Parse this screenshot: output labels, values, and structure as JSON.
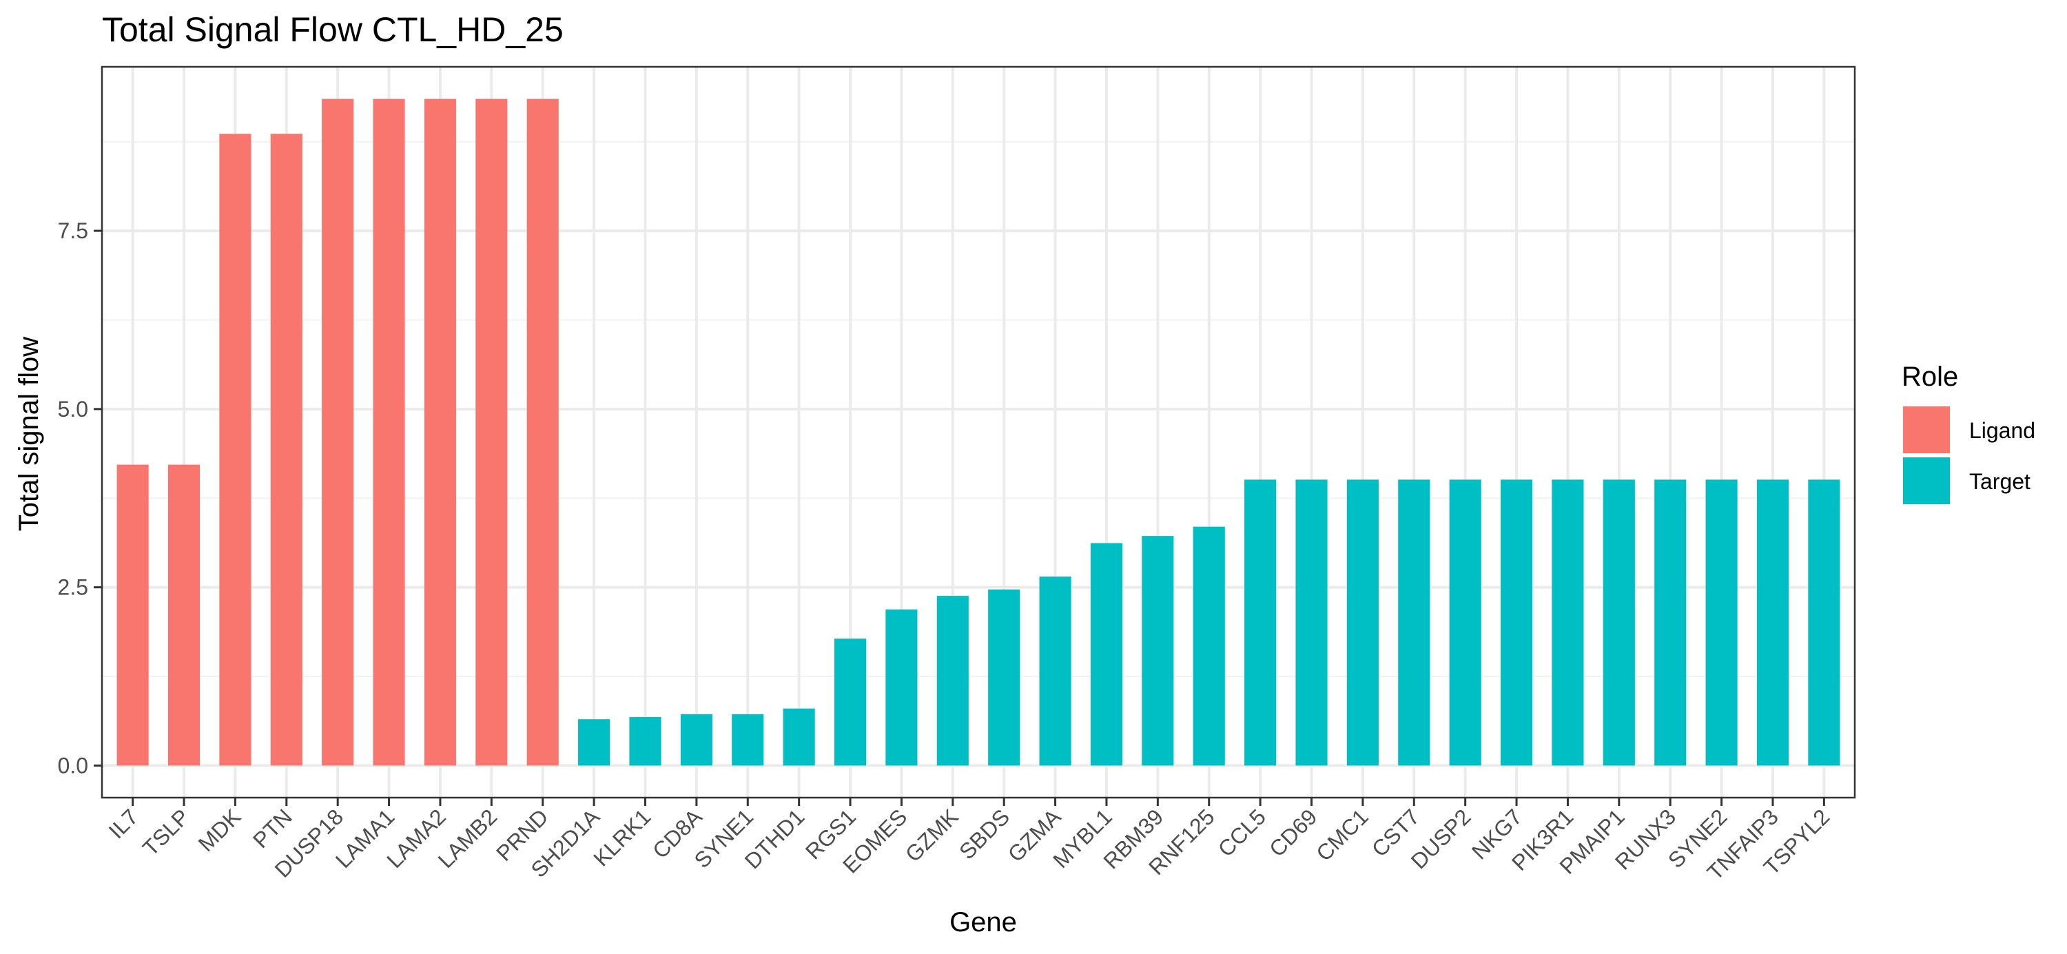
{
  "chart_data": {
    "type": "bar",
    "title": "Total Signal Flow CTL_HD_25",
    "xlabel": "Gene",
    "ylabel": "Total signal flow",
    "ylim": [
      -0.45,
      9.8
    ],
    "yticks": [
      0.0,
      2.5,
      5.0,
      7.5
    ],
    "ytick_labels": [
      "0.0",
      "2.5",
      "5.0",
      "7.5"
    ],
    "grid": true,
    "legend": {
      "title": "Role",
      "position": "right",
      "entries": [
        {
          "label": "Ligand",
          "color": "#F8766D"
        },
        {
          "label": "Target",
          "color": "#00BFC4"
        }
      ]
    },
    "colors": {
      "Ligand": "#F8766D",
      "Target": "#00BFC4"
    },
    "categories": [
      "IL7",
      "TSLP",
      "MDK",
      "PTN",
      "DUSP18",
      "LAMA1",
      "LAMA2",
      "LAMB2",
      "PRND",
      "SH2D1A",
      "KLRK1",
      "CD8A",
      "SYNE1",
      "DTHD1",
      "RGS1",
      "EOMES",
      "GZMK",
      "SBDS",
      "GZMA",
      "MYBL1",
      "RBM39",
      "RNF125",
      "CCL5",
      "CD69",
      "CMC1",
      "CST7",
      "DUSP2",
      "NKG7",
      "PIK3R1",
      "PMAIP1",
      "RUNX3",
      "SYNE2",
      "TNFAIP3",
      "TSPYL2"
    ],
    "roles": [
      "Ligand",
      "Ligand",
      "Ligand",
      "Ligand",
      "Ligand",
      "Ligand",
      "Ligand",
      "Ligand",
      "Ligand",
      "Target",
      "Target",
      "Target",
      "Target",
      "Target",
      "Target",
      "Target",
      "Target",
      "Target",
      "Target",
      "Target",
      "Target",
      "Target",
      "Target",
      "Target",
      "Target",
      "Target",
      "Target",
      "Target",
      "Target",
      "Target",
      "Target",
      "Target",
      "Target",
      "Target"
    ],
    "values": [
      4.22,
      4.22,
      8.86,
      8.86,
      9.35,
      9.35,
      9.35,
      9.35,
      9.35,
      0.65,
      0.68,
      0.72,
      0.72,
      0.8,
      1.78,
      2.19,
      2.38,
      2.47,
      2.65,
      3.12,
      3.22,
      3.35,
      4.01,
      4.01,
      4.01,
      4.01,
      4.01,
      4.01,
      4.01,
      4.01,
      4.01,
      4.01,
      4.01,
      4.01
    ]
  }
}
